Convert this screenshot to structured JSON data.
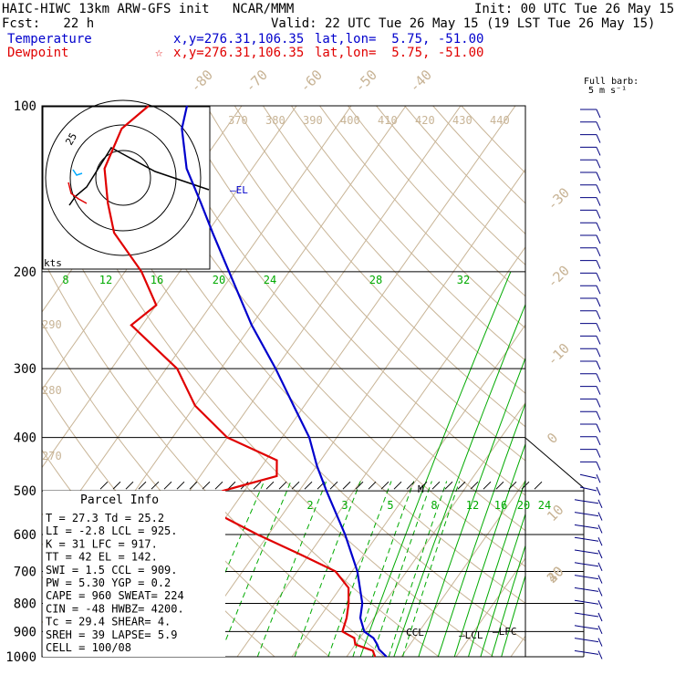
{
  "header": {
    "line1_left": "HAIC-HIWC 13km ARW-GFS init   NCAR/MMM",
    "line1_right": "Init: 00 UTC Tue 26 May 15",
    "line2_left": "Fcst:   22 h",
    "line2_right": "Valid: 22 UTC Tue 26 May 15 (19 LST Tue 26 May 15)",
    "temp_label": "Temperature",
    "temp_xy": "x,y=276.31,106.35",
    "temp_latlon": "lat,lon=  5.75, -51.00",
    "dew_label": "Dewpoint",
    "dew_xy": "x,y=276.31,106.35",
    "dew_latlon": "lat,lon=  5.75, -51.00"
  },
  "barb_legend": {
    "line1": "Full barb:",
    "line2": "5 m s⁻¹"
  },
  "hodograph": {
    "ring_label": "25",
    "units": "kts"
  },
  "parcel_info": {
    "title": "Parcel Info",
    "rows": [
      "T  =   27.3 Td =  25.2",
      "LI =   -2.8 LCL =  925.",
      "K  =     31 LFC =  917.",
      "TT =     42 EL  =  142.",
      "SWI =   1.5 CCL =  909.",
      "PW =   5.30 YGP =   0.2",
      "CAPE =  960 SWEAT=  224",
      "CIN =   -48 HWBZ= 4200.",
      "Tc =   29.4 SHEAR=   4.",
      "SREH =   39 LAPSE=  5.9",
      "CELL = 100/08"
    ]
  },
  "colors": {
    "temperature": "#0000cc",
    "dewpoint": "#e00000",
    "isotherm": "#c8b496",
    "dry_adiabat": "#c8b496",
    "mixing_ratio": "#00aa00",
    "wind_barb": "#000080"
  },
  "chart_data": {
    "type": "line",
    "diagram": "skew-T log-p",
    "y_axis": {
      "scale": "log",
      "reversed": true,
      "ylim": [
        1000,
        100
      ],
      "ticks": [
        1000,
        900,
        800,
        700,
        600,
        500,
        400,
        300,
        200,
        100
      ]
    },
    "isotherm_labels": [
      -80,
      -70,
      -60,
      -50,
      -40,
      -30,
      -20,
      -10,
      0,
      10,
      20,
      30,
      40
    ],
    "dry_adiabat_labels_upper": [
      370,
      380,
      390,
      400,
      410,
      420,
      430,
      440
    ],
    "dry_adiabat_labels_left": [
      290,
      280,
      270
    ],
    "mixing_ratio_labels_upper": [
      8,
      12,
      16,
      20,
      24,
      28,
      32
    ],
    "mixing_ratio_labels_lower": [
      2,
      3,
      5,
      8,
      12,
      16,
      20,
      24
    ],
    "series": [
      {
        "name": "Temperature",
        "color": "#0000cc",
        "points": [
          [
            1000,
            27.3
          ],
          [
            970,
            25
          ],
          [
            950,
            24
          ],
          [
            925,
            22.5
          ],
          [
            900,
            20
          ],
          [
            850,
            17.5
          ],
          [
            800,
            16
          ],
          [
            700,
            11
          ],
          [
            600,
            4
          ],
          [
            500,
            -5
          ],
          [
            450,
            -10
          ],
          [
            400,
            -15
          ],
          [
            350,
            -22
          ],
          [
            300,
            -30
          ],
          [
            250,
            -40
          ],
          [
            200,
            -51
          ],
          [
            170,
            -59
          ],
          [
            150,
            -65
          ],
          [
            130,
            -72
          ],
          [
            110,
            -78
          ],
          [
            100,
            -80
          ]
        ]
      },
      {
        "name": "Dewpoint",
        "color": "#e00000",
        "points": [
          [
            1000,
            25.2
          ],
          [
            975,
            24
          ],
          [
            950,
            20
          ],
          [
            925,
            19
          ],
          [
            900,
            16
          ],
          [
            850,
            15
          ],
          [
            800,
            13.5
          ],
          [
            750,
            11.5
          ],
          [
            700,
            7
          ],
          [
            650,
            -2
          ],
          [
            600,
            -12
          ],
          [
            550,
            -22
          ],
          [
            520,
            -24
          ],
          [
            500,
            -24
          ],
          [
            470,
            -16
          ],
          [
            440,
            -18
          ],
          [
            400,
            -30
          ],
          [
            350,
            -40
          ],
          [
            300,
            -48
          ],
          [
            250,
            -62
          ],
          [
            230,
            -60
          ],
          [
            200,
            -67
          ],
          [
            170,
            -77
          ],
          [
            150,
            -82
          ],
          [
            130,
            -87
          ],
          [
            110,
            -89
          ],
          [
            100,
            -87
          ]
        ]
      }
    ],
    "annotations": [
      "EL",
      "LCL",
      "LFC",
      "CCL",
      "M"
    ],
    "hodograph_ticks": [
      "25"
    ]
  }
}
